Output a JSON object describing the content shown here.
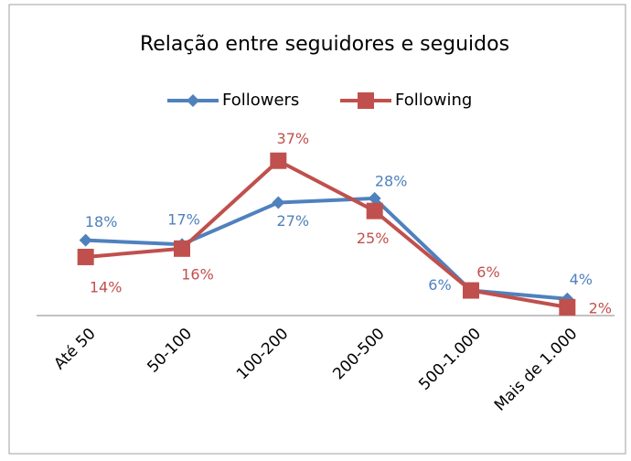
{
  "chart_data": {
    "type": "line",
    "title": "Relação entre seguidores e seguidos",
    "categories": [
      "Até 50",
      "50-100",
      "100-200",
      "200-500",
      "500-1.000",
      "Mais de 1.000"
    ],
    "series": [
      {
        "name": "Followers",
        "color": "#4f81bd",
        "marker": "diamond",
        "values": [
          18,
          17,
          27,
          28,
          6,
          4
        ],
        "value_labels": [
          "18%",
          "17%",
          "27%",
          "28%",
          "6%",
          "4%"
        ]
      },
      {
        "name": "Following",
        "color": "#c0504d",
        "marker": "square",
        "values": [
          14,
          16,
          37,
          25,
          6,
          2
        ],
        "value_labels": [
          "14%",
          "16%",
          "37%",
          "25%",
          "6%",
          "2%"
        ]
      }
    ],
    "ylim": [
      0,
      40
    ],
    "legend": "top"
  }
}
